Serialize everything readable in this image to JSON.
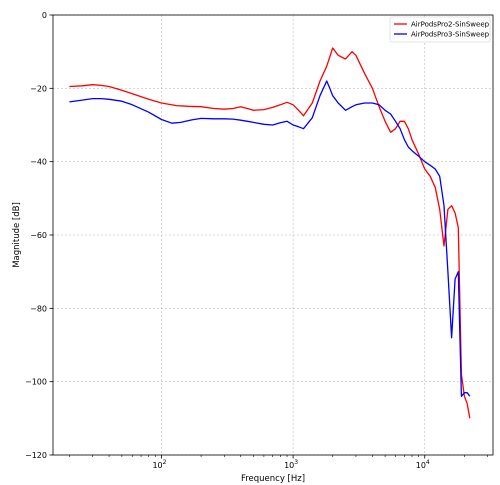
{
  "chart_data": {
    "type": "line",
    "xlabel": "Frequency [Hz]",
    "ylabel": "Magnitude [dB]",
    "xscale": "log",
    "xlim": [
      15,
      33000
    ],
    "ylim": [
      -120,
      0
    ],
    "yticks": [
      {
        "value": 0,
        "label": "0"
      },
      {
        "value": -20,
        "label": "−20"
      },
      {
        "value": -40,
        "label": "−40"
      },
      {
        "value": -60,
        "label": "−60"
      },
      {
        "value": -80,
        "label": "−80"
      },
      {
        "value": -100,
        "label": "−100"
      },
      {
        "value": -120,
        "label": "−120"
      }
    ],
    "xticks": [
      {
        "value": 100,
        "base": "10",
        "exp": "2"
      },
      {
        "value": 1000,
        "base": "10",
        "exp": "3"
      },
      {
        "value": 10000,
        "base": "10",
        "exp": "4"
      }
    ],
    "grid": true,
    "legend_position": "top-right",
    "series": [
      {
        "name": "AirPodsPro2-SinSweep",
        "color": "#ff0000",
        "x": [
          20,
          25,
          30,
          35,
          40,
          50,
          60,
          80,
          100,
          130,
          160,
          200,
          250,
          300,
          350,
          400,
          450,
          500,
          600,
          700,
          800,
          900,
          1000,
          1100,
          1200,
          1400,
          1600,
          1800,
          2000,
          2200,
          2500,
          2800,
          3000,
          3500,
          4000,
          4500,
          5000,
          5500,
          6000,
          6500,
          7000,
          7500,
          8000,
          9000,
          10000,
          11000,
          12000,
          13000,
          14000,
          15000,
          16000,
          17000,
          18000,
          19000,
          20000,
          21000,
          22000
        ],
        "y": [
          -19.5,
          -19.3,
          -19,
          -19.2,
          -19.5,
          -20.5,
          -21.5,
          -23,
          -24,
          -24.7,
          -24.9,
          -25,
          -25.5,
          -25.7,
          -25.5,
          -25,
          -25.5,
          -26,
          -25.8,
          -25.2,
          -24.5,
          -23.8,
          -24.5,
          -26,
          -27.5,
          -24,
          -18,
          -14,
          -9,
          -11,
          -12,
          -10,
          -11,
          -16,
          -20,
          -25,
          -29,
          -32,
          -31,
          -29,
          -29,
          -31,
          -34,
          -38,
          -42,
          -44,
          -47,
          -53,
          -63,
          -53,
          -52,
          -54,
          -58,
          -98,
          -104,
          -106,
          -110
        ]
      },
      {
        "name": "AirPodsPro3-SinSweep",
        "color": "#0000ff",
        "x": [
          20,
          25,
          30,
          35,
          40,
          50,
          60,
          80,
          100,
          120,
          140,
          170,
          200,
          250,
          300,
          350,
          400,
          450,
          500,
          600,
          700,
          800,
          900,
          1000,
          1100,
          1200,
          1400,
          1600,
          1700,
          1800,
          1900,
          2000,
          2200,
          2500,
          2800,
          3000,
          3500,
          4000,
          4500,
          5000,
          5500,
          6000,
          6500,
          7000,
          7500,
          8000,
          9000,
          10000,
          11000,
          12000,
          13000,
          14000,
          15000,
          16000,
          17000,
          18000,
          19000,
          20000,
          21000,
          22000
        ],
        "y": [
          -23.7,
          -23.2,
          -22.8,
          -22.8,
          -23,
          -23.5,
          -24.5,
          -26.5,
          -28.5,
          -29.5,
          -29.3,
          -28.6,
          -28.2,
          -28.3,
          -28.3,
          -28.4,
          -28.7,
          -29,
          -29.3,
          -29.8,
          -30,
          -29.4,
          -29,
          -30,
          -30.5,
          -31,
          -28,
          -22,
          -20,
          -18,
          -20,
          -22,
          -24,
          -26,
          -25,
          -24.5,
          -24,
          -24,
          -24.5,
          -26,
          -27,
          -29,
          -31,
          -34,
          -36,
          -37,
          -38.5,
          -40,
          -41,
          -42,
          -44,
          -52,
          -70,
          -88,
          -72,
          -70,
          -104,
          -103,
          -103,
          -104
        ]
      }
    ]
  }
}
